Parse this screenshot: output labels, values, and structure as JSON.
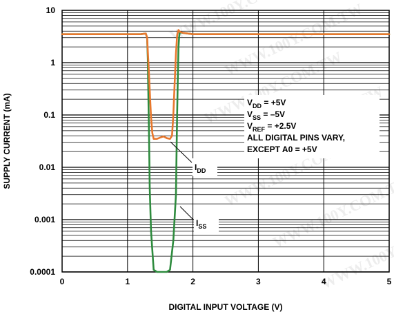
{
  "chart_data": {
    "type": "line",
    "xlabel": "DIGITAL INPUT VOLTAGE (V)",
    "ylabel": "SUPPLY CURRENT (mA)",
    "x_scale": "linear",
    "y_scale": "log",
    "xlim": [
      0,
      5
    ],
    "ylim": [
      0.0001,
      10
    ],
    "x_ticks": [
      "0",
      "1",
      "2",
      "3",
      "4",
      "5"
    ],
    "y_ticks": [
      "10",
      "1",
      "0.1",
      "0.01",
      "0.001",
      "0.0001"
    ],
    "grid": true,
    "series": [
      {
        "name": "ISS",
        "color": "#2e8b3e",
        "x": [
          0,
          1.2,
          1.28,
          1.3,
          1.31,
          1.32,
          1.33,
          1.34,
          1.36,
          1.4,
          1.45,
          1.5,
          1.55,
          1.6,
          1.65,
          1.7,
          1.74,
          1.75,
          1.76,
          1.77,
          1.78,
          1.79,
          1.8,
          1.85,
          2.0,
          5.0
        ],
        "y": [
          3.5,
          3.5,
          3.6,
          3.0,
          1.2,
          0.2,
          0.03,
          0.004,
          0.0006,
          0.00011,
          0.0001,
          0.0001,
          0.0001,
          0.0001,
          0.00011,
          0.0004,
          0.003,
          0.02,
          0.12,
          0.6,
          2.0,
          3.2,
          3.8,
          3.7,
          3.5,
          3.5
        ]
      },
      {
        "name": "IDD",
        "color": "#e8782d",
        "x": [
          0,
          1.2,
          1.28,
          1.3,
          1.32,
          1.34,
          1.36,
          1.38,
          1.4,
          1.45,
          1.5,
          1.55,
          1.6,
          1.65,
          1.68,
          1.7,
          1.72,
          1.74,
          1.76,
          1.78,
          1.8,
          1.85,
          2.0,
          5.0
        ],
        "y": [
          3.5,
          3.5,
          3.6,
          3.0,
          1.0,
          0.3,
          0.09,
          0.045,
          0.035,
          0.035,
          0.037,
          0.039,
          0.036,
          0.035,
          0.04,
          0.1,
          0.4,
          1.5,
          3.4,
          4.2,
          3.9,
          3.7,
          3.5,
          3.5
        ]
      }
    ],
    "annotations": {
      "conditions": [
        {
          "main": "V",
          "sub": "DD",
          "rest": " = +5V"
        },
        {
          "main": "V",
          "sub": "SS",
          "rest": " = –5V"
        },
        {
          "main": "V",
          "sub": "REF",
          "rest": " = +2.5V"
        },
        {
          "main": "ALL DIGITAL PINS VARY,",
          "sub": "",
          "rest": ""
        },
        {
          "main": "EXCEPT A0 = +5V",
          "sub": "",
          "rest": ""
        }
      ],
      "idd_label": {
        "main": "I",
        "sub": "DD"
      },
      "iss_label": {
        "main": "I",
        "sub": "SS"
      }
    },
    "watermark": "WWW.100Y.COM.TW"
  }
}
